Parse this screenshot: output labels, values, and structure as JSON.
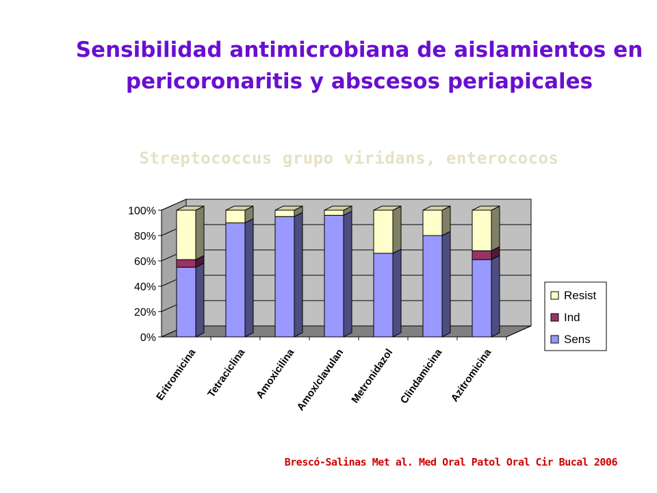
{
  "header": {
    "title_line1": "Sensibilidad antimicrobiana de aislamientos en",
    "title_line2": "pericoronaritis y abscesos periapicales",
    "subtitle": "Streptococcus grupo viridans, enterococos"
  },
  "footer": {
    "citation": "Brescó-Salinas Met al.  Med Oral Patol Oral Cir Bucal 2006"
  },
  "chart_data": {
    "type": "bar",
    "stacked": true,
    "percent_stacked": true,
    "three_d": true,
    "categories": [
      "Eritromicina",
      "Tetraciclina",
      "Amoxicilina",
      "Amox/clavulan",
      "Metronidazol",
      "Clindamicina",
      "Azitromicina"
    ],
    "series": [
      {
        "name": "Sens",
        "values": [
          55,
          90,
          95,
          96,
          66,
          80,
          61
        ],
        "color": "#9999ff"
      },
      {
        "name": "Ind",
        "values": [
          6,
          0,
          0,
          0,
          0,
          0,
          7
        ],
        "color": "#993366"
      },
      {
        "name": "Resist",
        "values": [
          39,
          10,
          5,
          4,
          34,
          20,
          32
        ],
        "color": "#ffffcc"
      }
    ],
    "y_ticks": [
      "0%",
      "20%",
      "40%",
      "60%",
      "80%",
      "100%"
    ],
    "ylim": [
      0,
      100
    ],
    "grid": true,
    "legend_position": "right",
    "legend_order": [
      "Resist",
      "Ind",
      "Sens"
    ],
    "colors": {
      "wall": "#c0c0c0",
      "floor": "#808080",
      "gridline": "#000000"
    }
  }
}
